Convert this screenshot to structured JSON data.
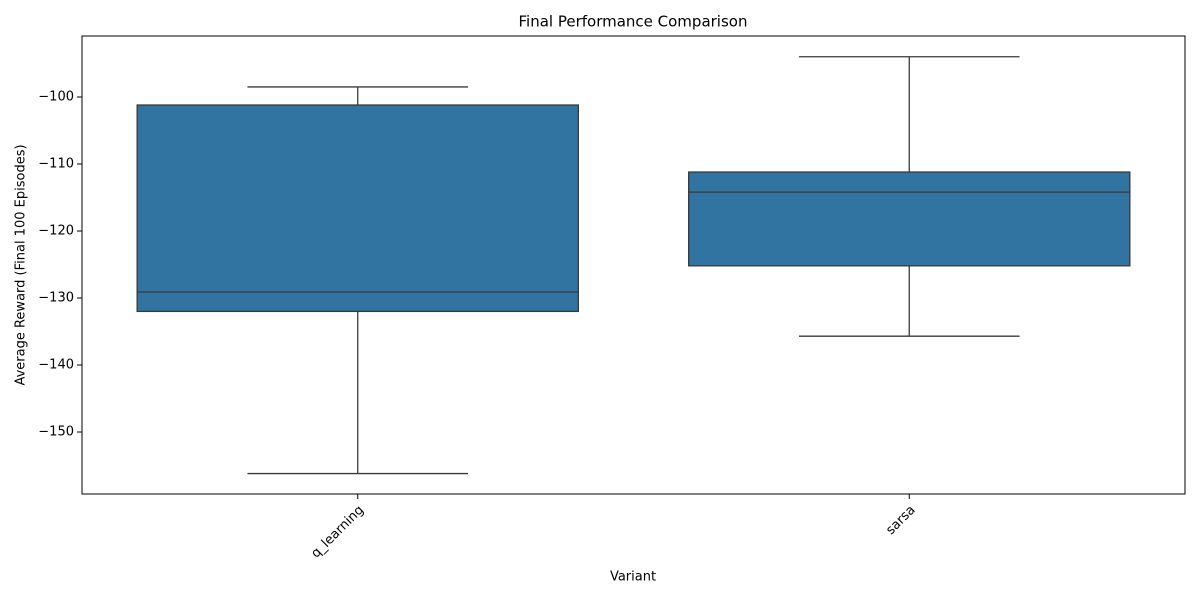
{
  "chart_data": {
    "type": "box",
    "title": "Final Performance Comparison",
    "x_label": "Variant",
    "y_label": "Average Reward (Final 100 Episodes)",
    "categories": [
      "q_learning",
      "sarsa"
    ],
    "color": "#3274a1",
    "boxes": [
      {
        "low": -156.2,
        "q1": -132.0,
        "median": -129.1,
        "q3": -101.2,
        "high": -98.5
      },
      {
        "low": -135.7,
        "q1": -125.2,
        "median": -114.2,
        "q3": -111.2,
        "high": -94.0
      }
    ],
    "ylim": [
      -159.25,
      -90.9
    ],
    "yticks": [
      {
        "value": -150,
        "label": "−150"
      },
      {
        "value": -140,
        "label": "−140"
      },
      {
        "value": -130,
        "label": "−130"
      },
      {
        "value": -120,
        "label": "−120"
      },
      {
        "value": -110,
        "label": "−110"
      },
      {
        "value": -100,
        "label": "−100"
      }
    ]
  }
}
